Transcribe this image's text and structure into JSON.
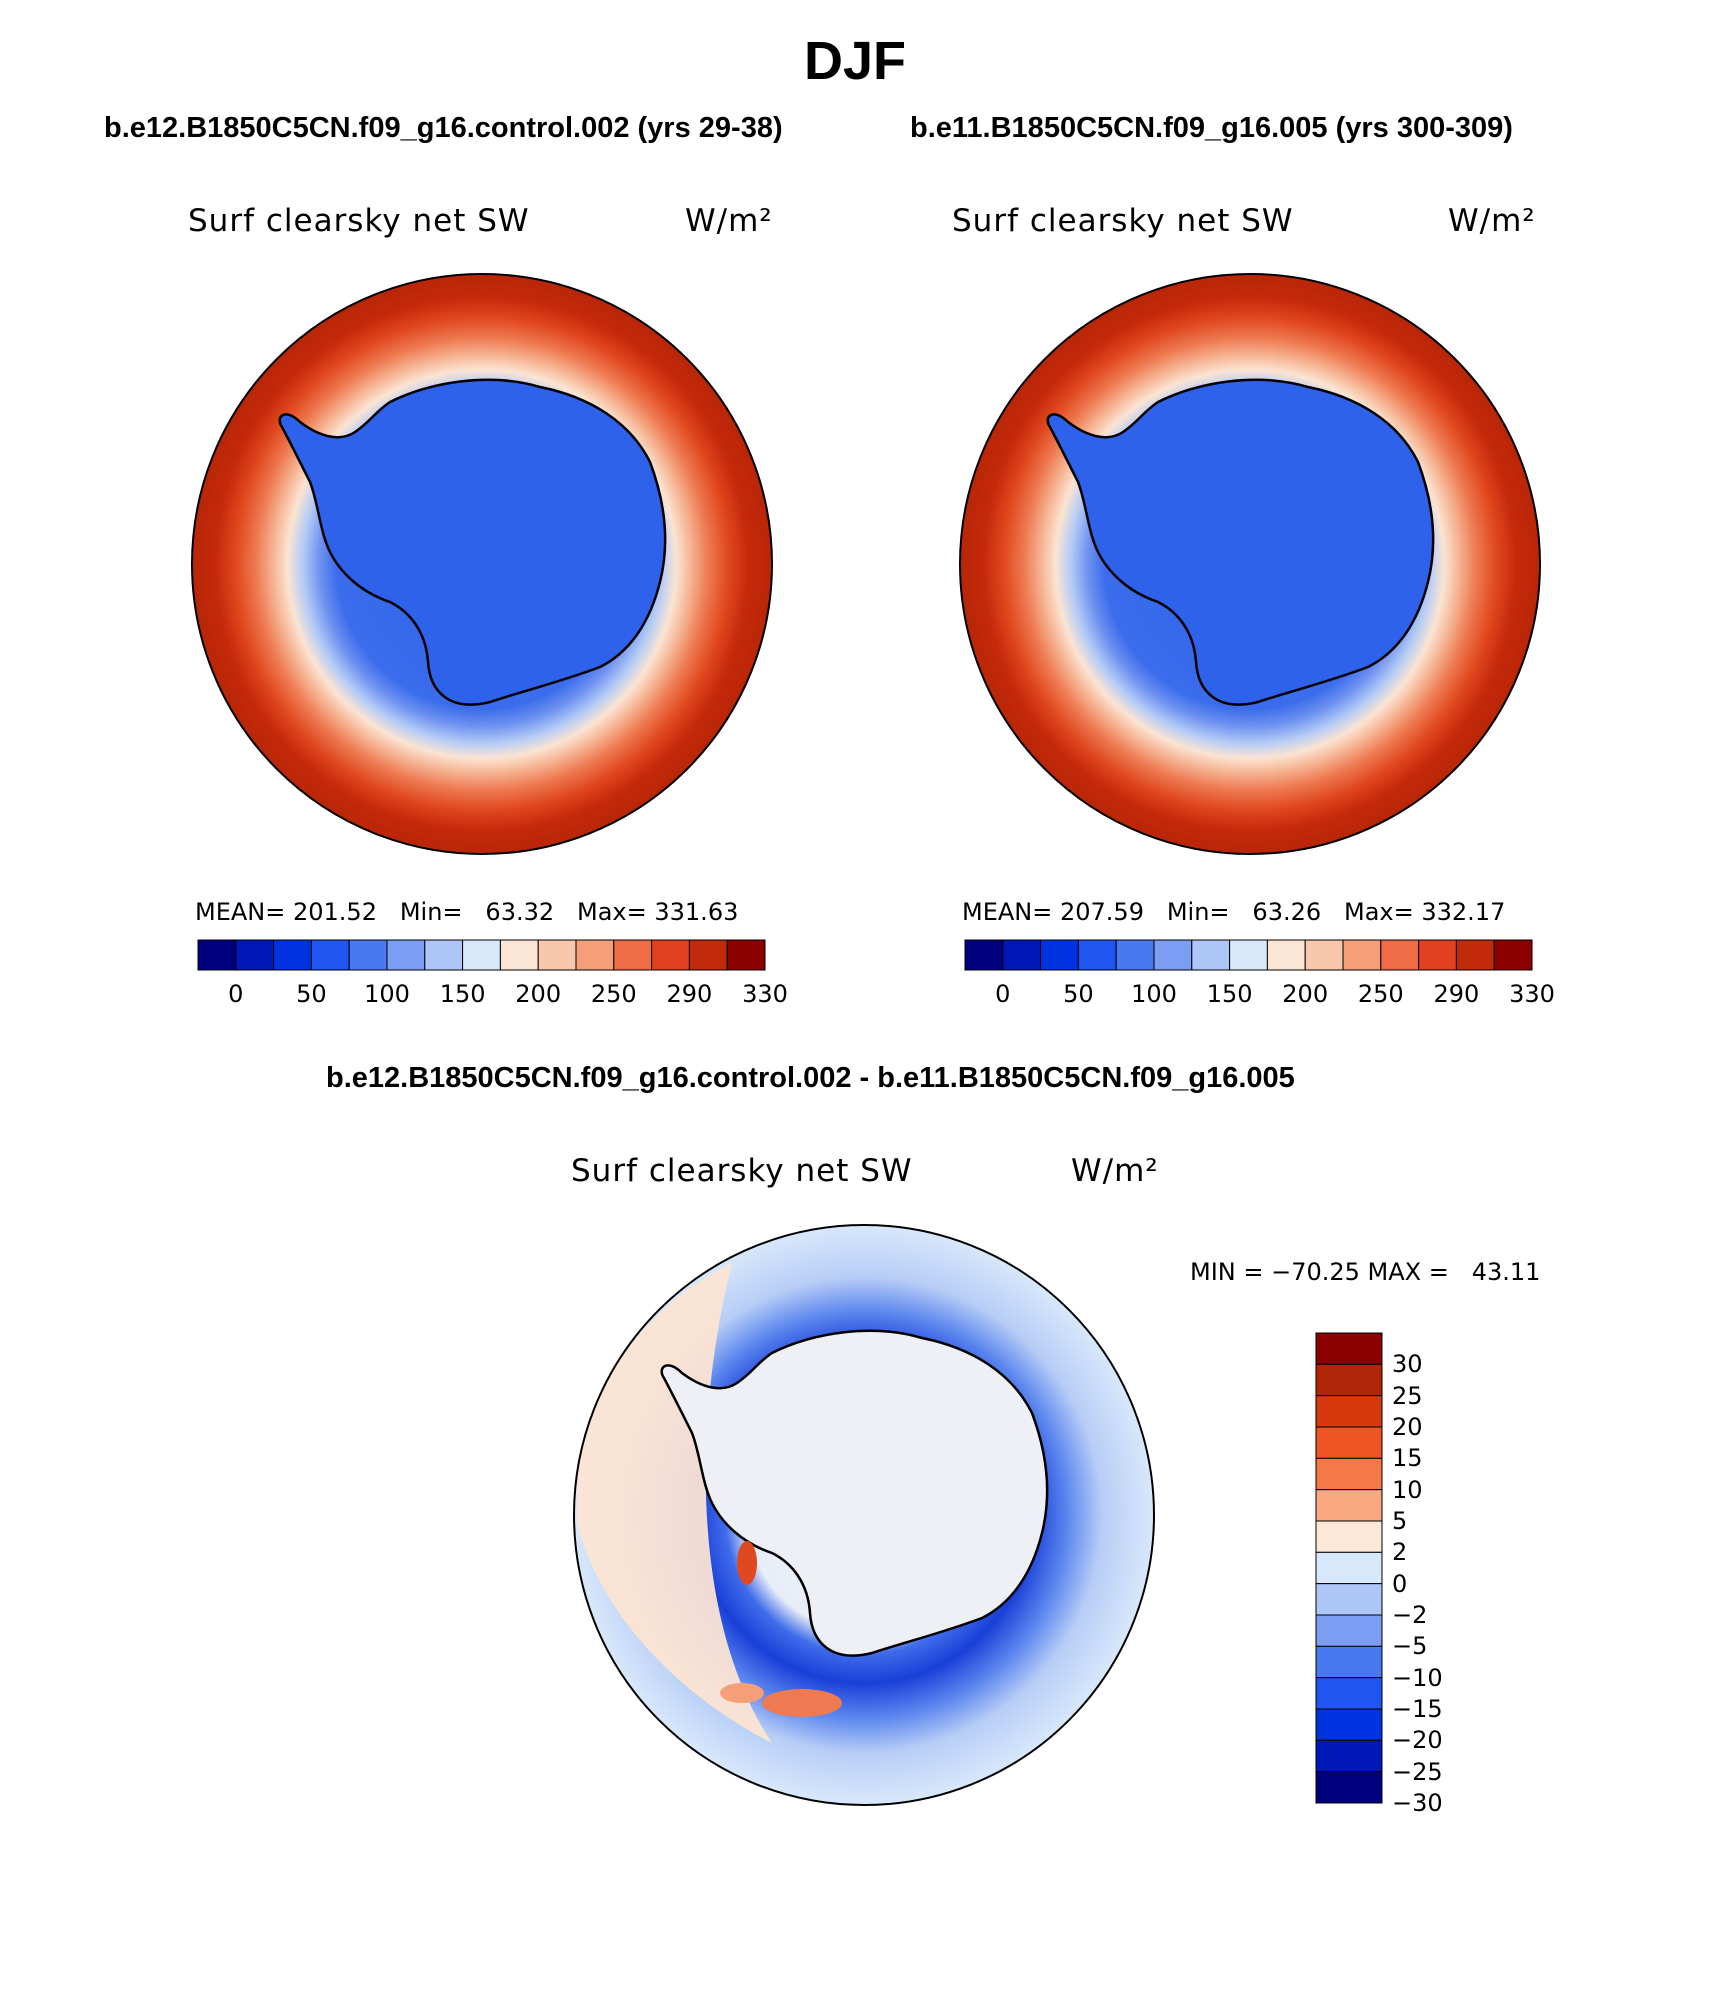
{
  "figure": {
    "season_title": "DJF",
    "panel_left": {
      "case_title": "b.e12.B1850C5CN.f09_g16.control.002 (yrs 29-38)",
      "variable": "Surf clearsky net SW",
      "units": "W/m²",
      "stats": "MEAN= 201.52   Min=   63.32   Max= 331.63"
    },
    "panel_right": {
      "case_title": "b.e11.B1850C5CN.f09_g16.005 (yrs 300-309)",
      "variable": "Surf clearsky net SW",
      "units": "W/m²",
      "stats": "MEAN= 207.59   Min=   63.26   Max= 332.17"
    },
    "panel_diff": {
      "case_title": "b.e12.B1850C5CN.f09_g16.control.002 - b.e11.B1850C5CN.f09_g16.005",
      "variable": "Surf clearsky net SW",
      "units": "W/m²",
      "minmax": "MIN = −70.25 MAX =   43.11"
    },
    "abs_colorbar": {
      "labels": [
        "0",
        "50",
        "100",
        "150",
        "200",
        "250",
        "290",
        "330"
      ],
      "colors": [
        "#00007f",
        "#0018b8",
        "#0033e0",
        "#1f55f0",
        "#4a78f0",
        "#7b9ef2",
        "#aec6f7",
        "#d8e8fb",
        "#fbe6d6",
        "#f9c8ac",
        "#f49f7a",
        "#ee6d47",
        "#e24120",
        "#c22a0c",
        "#8c0000"
      ]
    },
    "diff_colorbar": {
      "labels": [
        "30",
        "25",
        "20",
        "15",
        "10",
        "5",
        "2",
        "0",
        "−2",
        "−5",
        "−10",
        "−15",
        "−20",
        "−25",
        "−30"
      ],
      "colors": [
        "#8c0000",
        "#b02408",
        "#d8380e",
        "#ee5424",
        "#f47848",
        "#f9a882",
        "#fde8d8",
        "#d8e8fb",
        "#aec6f7",
        "#7b9ef2",
        "#4a78f0",
        "#1f55f0",
        "#0033e0",
        "#0018b8",
        "#00007f"
      ]
    }
  }
}
